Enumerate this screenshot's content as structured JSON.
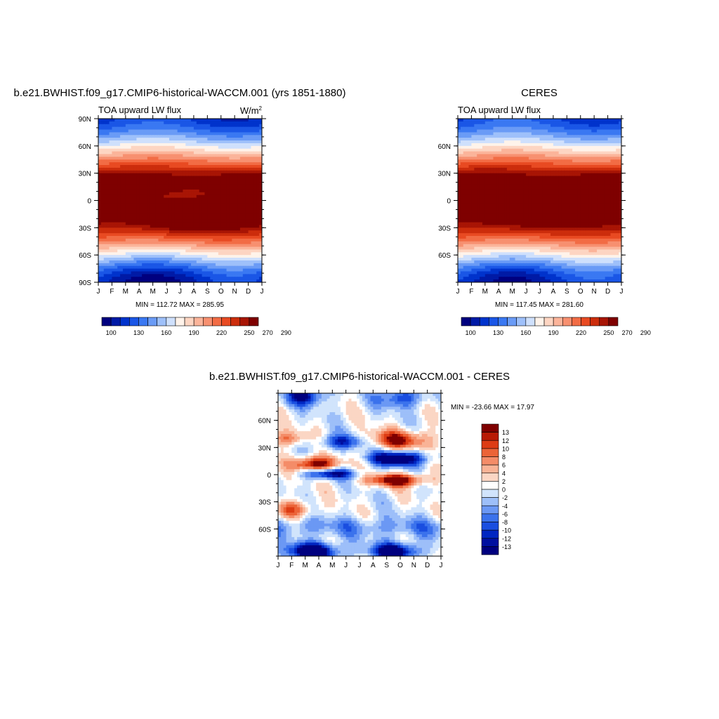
{
  "chart_data": [
    {
      "type": "heatmap",
      "title": "b.e21.BWHIST.f09_g17.CMIP6-historical-WACCM.001 (yrs 1851-1880)",
      "subtitle": "TOA upward LW flux",
      "units": "W/m",
      "units_sup": "2",
      "x_ticks": [
        "J",
        "F",
        "M",
        "A",
        "M",
        "J",
        "J",
        "A",
        "S",
        "O",
        "N",
        "D",
        "J"
      ],
      "y_ticks": [
        "90N",
        "60N",
        "30N",
        "0",
        "30S",
        "60S",
        "90S"
      ],
      "y_tick_values": [
        90,
        60,
        30,
        0,
        -30,
        -60,
        -90
      ],
      "ylim": [
        -90,
        90
      ],
      "stats": "MIN = 112.72 MAX = 285.95",
      "colorbar_labels": [
        "100",
        "130",
        "160",
        "190",
        "220",
        "250",
        "270",
        "290"
      ],
      "colorbar_levels": [
        100,
        110,
        120,
        130,
        140,
        150,
        160,
        170,
        180,
        190,
        200,
        210,
        220,
        230,
        240,
        250,
        260,
        270,
        280,
        290
      ],
      "palette": [
        "#00007f",
        "#001aa6",
        "#0033cc",
        "#1a56e6",
        "#3a78f2",
        "#6a9bf6",
        "#9ec0fa",
        "#cfe0fc",
        "#fff3ea",
        "#fdd5c2",
        "#fbb49a",
        "#f79070",
        "#f26c45",
        "#e84a22",
        "#cc2d0c",
        "#a81505",
        "#7f0000"
      ],
      "source": "model"
    },
    {
      "type": "heatmap",
      "title": "CERES",
      "subtitle": "TOA upward LW flux",
      "x_ticks": [
        "J",
        "F",
        "M",
        "A",
        "M",
        "J",
        "J",
        "A",
        "S",
        "O",
        "N",
        "D",
        "J"
      ],
      "y_ticks": [
        "60N",
        "30N",
        "0",
        "30S",
        "60S"
      ],
      "y_tick_values": [
        60,
        30,
        0,
        -30,
        -60
      ],
      "ylim": [
        -90,
        90
      ],
      "stats": "MIN = 117.45 MAX = 281.60",
      "colorbar_labels": [
        "100",
        "130",
        "160",
        "190",
        "220",
        "250",
        "270",
        "290"
      ],
      "colorbar_levels": [
        100,
        110,
        120,
        130,
        140,
        150,
        160,
        170,
        180,
        190,
        200,
        210,
        220,
        230,
        240,
        250,
        260,
        270,
        280,
        290
      ],
      "palette": [
        "#00007f",
        "#001aa6",
        "#0033cc",
        "#1a56e6",
        "#3a78f2",
        "#6a9bf6",
        "#9ec0fa",
        "#cfe0fc",
        "#fff3ea",
        "#fdd5c2",
        "#fbb49a",
        "#f79070",
        "#f26c45",
        "#e84a22",
        "#cc2d0c",
        "#a81505",
        "#7f0000"
      ],
      "source": "obs"
    },
    {
      "type": "heatmap",
      "title": "b.e21.BWHIST.f09_g17.CMIP6-historical-WACCM.001 - CERES",
      "x_ticks": [
        "J",
        "F",
        "M",
        "A",
        "M",
        "J",
        "J",
        "A",
        "S",
        "O",
        "N",
        "D",
        "J"
      ],
      "y_ticks": [
        "60N",
        "30N",
        "0",
        "30S",
        "60S"
      ],
      "y_tick_values": [
        60,
        30,
        0,
        -30,
        -60
      ],
      "ylim": [
        -90,
        90
      ],
      "stats": "MIN = -23.66 MAX =  17.97",
      "colorbar_labels": [
        "13",
        "12",
        "10",
        "8",
        "6",
        "4",
        "2",
        "0",
        "-2",
        "-4",
        "-6",
        "-8",
        "-10",
        "-12",
        "-13"
      ],
      "colorbar_levels": [
        -13,
        -12,
        -10,
        -8,
        -6,
        -4,
        -2,
        0,
        2,
        4,
        6,
        8,
        10,
        12,
        13
      ],
      "palette": [
        "#00007f",
        "#0010a0",
        "#0026c2",
        "#1a4ee0",
        "#3b72ec",
        "#6b98f4",
        "#9dbff9",
        "#d1e4fc",
        "#ffffff",
        "#fbd6c4",
        "#f9b396",
        "#f48c68",
        "#ec6438",
        "#dd3c14",
        "#b81a05",
        "#7f0000"
      ],
      "source": "diff"
    }
  ]
}
